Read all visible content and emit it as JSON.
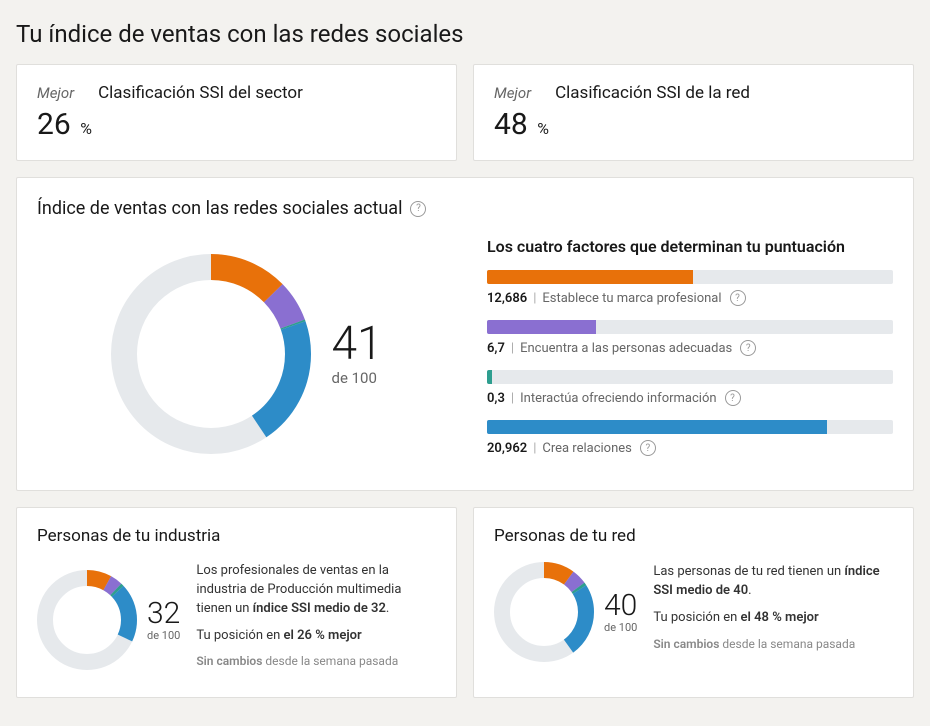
{
  "page_title": "Tu índice de ventas con las redes sociales",
  "rank_cards": [
    {
      "label": "Mejor",
      "title": "Clasificación SSI del sector",
      "value": "26",
      "unit": "%"
    },
    {
      "label": "Mejor",
      "title": "Clasificación SSI de la red",
      "value": "48",
      "unit": "%"
    }
  ],
  "main": {
    "header": "Índice de ventas con las redes sociales actual",
    "score": "41",
    "score_sub": "de 100",
    "donut": {
      "size": 200,
      "stroke": 26,
      "track_color": "#e6e9ec",
      "segments": [
        {
          "value": 12.686,
          "color": "#e8710a"
        },
        {
          "value": 6.7,
          "color": "#8a6fd1"
        },
        {
          "value": 0.3,
          "color": "#2e9e8f"
        },
        {
          "value": 20.962,
          "color": "#2d8cc8"
        }
      ],
      "max": 100
    },
    "factors_title": "Los cuatro factores que determinan tu puntuación",
    "factor_max": 25,
    "factors": [
      {
        "value_text": "12,686",
        "value": 12.686,
        "label": "Establece tu marca profesional",
        "color": "#e8710a"
      },
      {
        "value_text": "6,7",
        "value": 6.7,
        "label": "Encuentra a las personas adecuadas",
        "color": "#8a6fd1"
      },
      {
        "value_text": "0,3",
        "value": 0.3,
        "label": "Interactúa ofreciendo información",
        "color": "#2e9e8f"
      },
      {
        "value_text": "20,962",
        "value": 20.962,
        "label": "Crea relaciones",
        "color": "#2d8cc8"
      }
    ]
  },
  "bottom": [
    {
      "title": "Personas de tu industria",
      "score": "32",
      "score_sub": "de 100",
      "donut": {
        "size": 100,
        "stroke": 16,
        "track_color": "#e6e9ec",
        "segments": [
          {
            "value": 8,
            "color": "#e8710a"
          },
          {
            "value": 4,
            "color": "#8a6fd1"
          },
          {
            "value": 1,
            "color": "#2e9e8f"
          },
          {
            "value": 19,
            "color": "#2d8cc8"
          }
        ],
        "max": 100
      },
      "text_pre": "Los profesionales de ventas en la industria de Producción multimedia tienen un ",
      "text_bold": "índice SSI medio de 32",
      "text_post": ".",
      "pos_pre": "Tu posición en ",
      "pos_bold": "el 26 % mejor",
      "change_bold": "Sin cambios",
      "change_rest": " desde la semana pasada"
    },
    {
      "title": "Personas de tu red",
      "score": "40",
      "score_sub": "de 100",
      "donut": {
        "size": 100,
        "stroke": 16,
        "track_color": "#e6e9ec",
        "segments": [
          {
            "value": 10,
            "color": "#e8710a"
          },
          {
            "value": 5,
            "color": "#8a6fd1"
          },
          {
            "value": 1,
            "color": "#2e9e8f"
          },
          {
            "value": 24,
            "color": "#2d8cc8"
          }
        ],
        "max": 100
      },
      "text_pre": "Las personas de tu red tienen un ",
      "text_bold": "índice SSI medio de 40",
      "text_post": ".",
      "pos_pre": "Tu posición en ",
      "pos_bold": "el 48 % mejor",
      "change_bold": "Sin cambios",
      "change_rest": " desde la semana pasada"
    }
  ]
}
